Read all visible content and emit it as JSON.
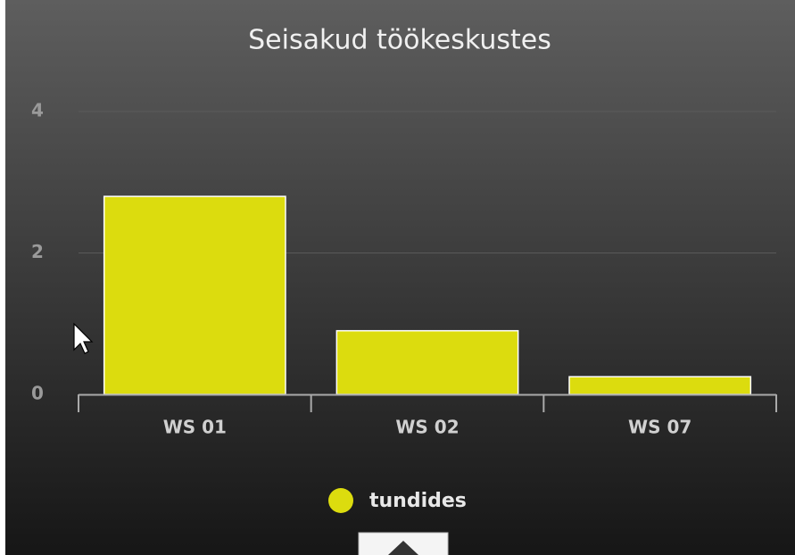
{
  "chart_data": {
    "type": "bar",
    "title": "Seisakud töökeskustes",
    "categories": [
      "WS 01",
      "WS 02",
      "WS 07"
    ],
    "series": [
      {
        "name": "tundides",
        "color": "#dcdc0e",
        "values": [
          2.8,
          0.9,
          0.25
        ]
      }
    ],
    "ylim": [
      0,
      4
    ],
    "yticks": [
      0,
      2,
      4
    ],
    "grid": true,
    "legend": "bottom"
  }
}
